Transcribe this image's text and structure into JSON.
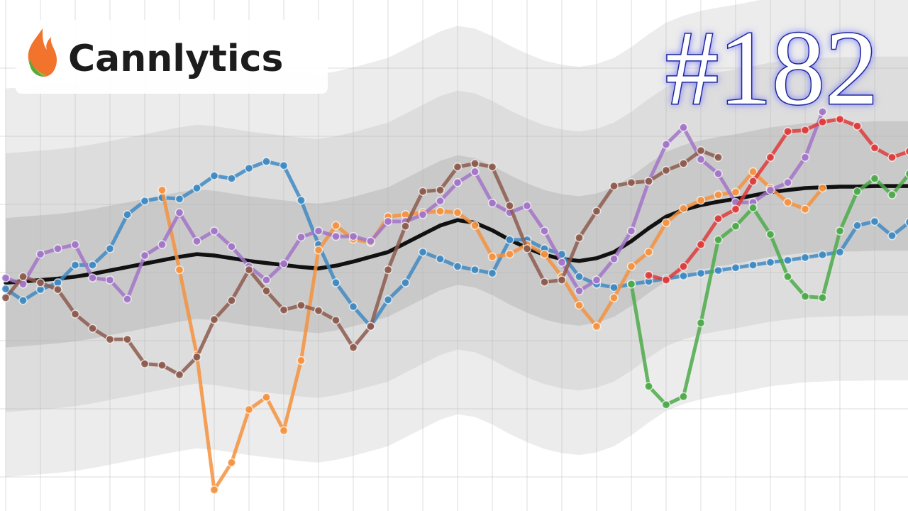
{
  "brand": "Cannlytics",
  "chart_data": {
    "type": "line",
    "title": "#182",
    "x": [
      0,
      1,
      2,
      3,
      4,
      5,
      6,
      7,
      8,
      9,
      10,
      11,
      12,
      13,
      14,
      15,
      16,
      17,
      18,
      19,
      20,
      21,
      22,
      23,
      24,
      25,
      26,
      27,
      28,
      29,
      30,
      31,
      32,
      33,
      34,
      35,
      36,
      37,
      38,
      39,
      40,
      41,
      42,
      43,
      44,
      45,
      46,
      47,
      48,
      49,
      50,
      51,
      52
    ],
    "xlim": [
      0,
      52
    ],
    "ylim": [
      0,
      75
    ],
    "xticks": [
      0,
      2,
      4,
      6,
      8,
      10,
      12,
      14,
      16,
      18,
      20,
      22,
      24,
      26,
      28,
      30,
      32,
      34,
      36,
      38,
      40,
      42,
      44,
      46,
      48,
      50,
      52
    ],
    "yticks": [
      5,
      15,
      25,
      35,
      45,
      55,
      65
    ],
    "grid": true,
    "series": [
      {
        "color": "#111111",
        "markers": false,
        "bands": [
          {
            "width": 28.5,
            "color": "#ececec"
          },
          {
            "width": 19,
            "color": "#dddddd"
          },
          {
            "width": 9.5,
            "color": "#c9c9c9"
          }
        ],
        "values": [
          33.5,
          33.7,
          33.9,
          34.1,
          34.4,
          34.8,
          35.3,
          35.8,
          36.3,
          36.8,
          37.3,
          37.7,
          37.5,
          37.1,
          36.7,
          36.4,
          36.1,
          35.8,
          35.6,
          36.0,
          36.6,
          37.3,
          38.0,
          39.3,
          40.6,
          41.9,
          42.7,
          42.3,
          41.2,
          39.8,
          38.6,
          37.6,
          37.0,
          36.7,
          37.1,
          38.0,
          39.6,
          41.5,
          43.2,
          44.2,
          44.9,
          45.4,
          45.8,
          46.3,
          46.8,
          47.1,
          47.4,
          47.5,
          47.6,
          47.6,
          47.7,
          47.7,
          47.7
        ]
      },
      {
        "color": "#3f8ac2",
        "markers": true,
        "values": [
          32.6,
          30.9,
          32.5,
          33.5,
          36.1,
          36.1,
          38.5,
          43.5,
          45.5,
          46.0,
          45.8,
          47.4,
          49.2,
          48.8,
          50.3,
          51.3,
          50.7,
          45.6,
          39.1,
          33.5,
          30.0,
          27.1,
          31.0,
          33.5,
          38.0,
          37.0,
          35.9,
          35.4,
          34.9,
          39.8,
          39.8,
          38.5,
          37.7,
          34.4,
          33.3,
          32.8,
          33.3,
          33.7,
          34.1,
          34.5,
          34.9,
          35.3,
          35.7,
          36.1,
          36.5,
          36.8,
          37.2,
          37.6,
          38.0,
          41.9,
          42.5,
          40.4,
          42.4
        ]
      },
      {
        "color": "#f5923e",
        "markers": true,
        "values": [
          null,
          null,
          null,
          null,
          null,
          null,
          null,
          null,
          null,
          47.1,
          35.4,
          22.9,
          3.1,
          7.1,
          14.9,
          16.7,
          11.8,
          22.1,
          38.3,
          41.9,
          39.9,
          39.4,
          43.2,
          43.5,
          43.8,
          44.0,
          43.8,
          41.9,
          37.3,
          37.7,
          39.1,
          37.7,
          34.4,
          30.2,
          27.1,
          31.3,
          35.9,
          38.0,
          42.3,
          44.4,
          45.6,
          46.4,
          46.8,
          49.8,
          47.4,
          45.3,
          44.3,
          47.4,
          null,
          null,
          null,
          null,
          null
        ]
      },
      {
        "color": "#a274c8",
        "markers": true,
        "values": [
          34.2,
          33.3,
          37.7,
          38.5,
          39.1,
          34.2,
          33.9,
          31.1,
          37.5,
          39.1,
          43.8,
          39.6,
          41.1,
          38.8,
          35.9,
          33.9,
          36.3,
          40.2,
          41.1,
          40.3,
          40.3,
          39.6,
          42.5,
          42.5,
          43.5,
          45.5,
          48.2,
          49.8,
          45.2,
          43.8,
          44.8,
          41.1,
          36.5,
          32.3,
          33.9,
          37.0,
          41.1,
          48.4,
          53.8,
          56.3,
          51.6,
          49.5,
          45.3,
          45.3,
          47.1,
          48.2,
          51.9,
          58.6,
          null,
          null,
          null,
          null,
          null
        ]
      },
      {
        "color": "#8d5b4e",
        "markers": true,
        "values": [
          31.3,
          34.4,
          33.5,
          32.5,
          28.9,
          26.8,
          25.2,
          25.2,
          21.6,
          21.4,
          20.0,
          22.6,
          28.1,
          30.9,
          35.4,
          32.3,
          29.5,
          30.2,
          29.4,
          28.0,
          24.0,
          27.1,
          35.4,
          41.8,
          46.9,
          47.1,
          50.5,
          51.0,
          50.5,
          44.8,
          38.5,
          33.6,
          33.9,
          40.1,
          44.0,
          47.7,
          48.2,
          48.4,
          50.0,
          51.0,
          52.9,
          51.9,
          null,
          null,
          null,
          null,
          null,
          null,
          null,
          null,
          null,
          null,
          null
        ]
      },
      {
        "color": "#de3b3b",
        "markers": true,
        "values": [
          null,
          null,
          null,
          null,
          null,
          null,
          null,
          null,
          null,
          null,
          null,
          null,
          null,
          null,
          null,
          null,
          null,
          null,
          null,
          null,
          null,
          null,
          null,
          null,
          null,
          null,
          null,
          null,
          null,
          null,
          null,
          null,
          null,
          null,
          null,
          null,
          null,
          34.6,
          33.9,
          35.9,
          39.1,
          42.9,
          44.3,
          48.4,
          51.9,
          55.7,
          55.9,
          57.1,
          57.5,
          56.5,
          53.3,
          51.9,
          52.8
        ]
      },
      {
        "color": "#4caa4a",
        "markers": true,
        "values": [
          null,
          null,
          null,
          null,
          null,
          null,
          null,
          null,
          null,
          null,
          null,
          null,
          null,
          null,
          null,
          null,
          null,
          null,
          null,
          null,
          null,
          null,
          null,
          null,
          null,
          null,
          null,
          null,
          null,
          null,
          null,
          null,
          null,
          null,
          null,
          null,
          33.3,
          18.3,
          15.6,
          16.8,
          27.6,
          39.8,
          41.8,
          44.5,
          40.6,
          34.4,
          31.5,
          31.3,
          41.1,
          46.9,
          48.8,
          46.4,
          49.5
        ]
      }
    ]
  }
}
